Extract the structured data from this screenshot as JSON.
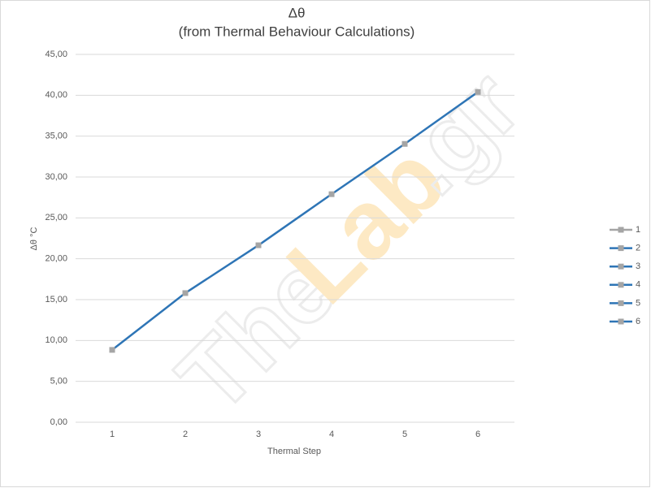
{
  "chart_data": {
    "type": "line",
    "title": "Δθ",
    "subtitle": "(from Thermal Behaviour Calculations)",
    "x_label": "Thermal Step",
    "y_label": "Δθ °C",
    "categories": [
      "1",
      "2",
      "3",
      "4",
      "5",
      "6"
    ],
    "values": [
      8.85,
      15.8,
      21.65,
      27.9,
      34.05,
      40.4
    ],
    "color": "#2e75b6",
    "marker_color": "#a5a5a5",
    "ylim": [
      0,
      45
    ],
    "yticks": [
      {
        "value": 0,
        "label": "0,00"
      },
      {
        "value": 5,
        "label": "5,00"
      },
      {
        "value": 10,
        "label": "10,00"
      },
      {
        "value": 15,
        "label": "15,00"
      },
      {
        "value": 20,
        "label": "20,00"
      },
      {
        "value": 25,
        "label": "25,00"
      },
      {
        "value": 30,
        "label": "30,00"
      },
      {
        "value": 35,
        "label": "35,00"
      },
      {
        "value": 40,
        "label": "40,00"
      },
      {
        "value": 45,
        "label": "45,00"
      }
    ],
    "grid": true,
    "legend_position": "right",
    "legend": [
      {
        "name": "1",
        "color": "#a5a5a5"
      },
      {
        "name": "2",
        "color": "#2e75b6"
      },
      {
        "name": "3",
        "color": "#2e75b6"
      },
      {
        "name": "4",
        "color": "#2e75b6"
      },
      {
        "name": "5",
        "color": "#2e75b6"
      },
      {
        "name": "6",
        "color": "#2e75b6"
      }
    ],
    "watermark": [
      "The",
      "Lab",
      ".gr"
    ]
  }
}
